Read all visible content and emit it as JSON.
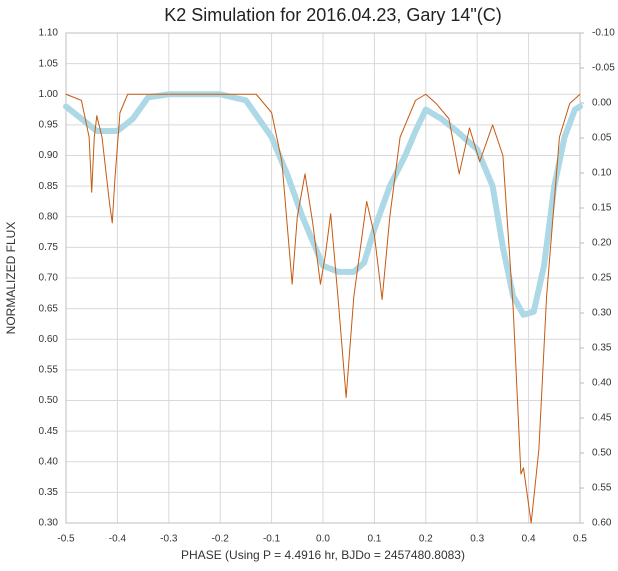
{
  "chart_data": {
    "type": "line",
    "title": "K2 Simulation for 2016.04.23, Gary 14\"(C)",
    "x_label": "PHASE (Using P = 4.4916 hr, BJDo = 2457480.8083)",
    "y_label": "NORMALIZED FLUX",
    "xlim": [
      -0.5,
      0.5
    ],
    "xticks": [
      -0.5,
      -0.4,
      -0.3,
      -0.2,
      -0.1,
      {
        "value": 0,
        "label": "0.0"
      },
      0.1,
      0.2,
      0.3,
      0.4,
      0.5
    ],
    "ylim": [
      0.3,
      1.1
    ],
    "yticks": [
      {
        "value": 0.3,
        "label": "0.30"
      },
      {
        "value": 0.35,
        "label": "0.35"
      },
      {
        "value": 0.4,
        "label": "0.40"
      },
      {
        "value": 0.45,
        "label": "0.45"
      },
      {
        "value": 0.5,
        "label": "0.50"
      },
      {
        "value": 0.55,
        "label": "0.55"
      },
      {
        "value": 0.6,
        "label": "0.60"
      },
      {
        "value": 0.65,
        "label": "0.65"
      },
      {
        "value": 0.7,
        "label": "0.70"
      },
      {
        "value": 0.75,
        "label": "0.75"
      },
      {
        "value": 0.8,
        "label": "0.80"
      },
      {
        "value": 0.85,
        "label": "0.85"
      },
      {
        "value": 0.9,
        "label": "0.90"
      },
      {
        "value": 0.95,
        "label": "0.95"
      },
      {
        "value": 1.0,
        "label": "1.00"
      },
      {
        "value": 1.05,
        "label": "1.05"
      },
      {
        "value": 1.1,
        "label": "1.10"
      }
    ],
    "y2lim": [
      0.6,
      -0.1
    ],
    "y2ticks": [
      {
        "value": -0.1,
        "label": "-0.10"
      },
      {
        "value": -0.05,
        "label": "-0.05"
      },
      {
        "value": 0,
        "label": "0.00"
      },
      {
        "value": 0.05,
        "label": "0.05"
      },
      {
        "value": 0.1,
        "label": "0.10"
      },
      {
        "value": 0.15,
        "label": "0.15"
      },
      {
        "value": 0.2,
        "label": "0.20"
      },
      {
        "value": 0.25,
        "label": "0.25"
      },
      {
        "value": 0.3,
        "label": "0.30"
      },
      {
        "value": 0.35,
        "label": "0.35"
      },
      {
        "value": 0.4,
        "label": "0.40"
      },
      {
        "value": 0.45,
        "label": "0.45"
      },
      {
        "value": 0.5,
        "label": "0.50"
      },
      {
        "value": 0.55,
        "label": "0.55"
      },
      {
        "value": 0.6,
        "label": "0.60"
      }
    ],
    "grid": true,
    "series": [
      {
        "color": "#add8e6",
        "width": 6,
        "x": [
          -0.5,
          -0.47,
          -0.44,
          -0.4,
          -0.37,
          -0.34,
          -0.3,
          -0.2,
          -0.15,
          -0.1,
          -0.07,
          -0.04,
          -0.02,
          0.0,
          0.03,
          0.06,
          0.08,
          0.1,
          0.13,
          0.16,
          0.18,
          0.2,
          0.23,
          0.26,
          0.3,
          0.33,
          0.35,
          0.37,
          0.39,
          0.41,
          0.43,
          0.45,
          0.47,
          0.49,
          0.5
        ],
        "values": [
          0.98,
          0.96,
          0.94,
          0.94,
          0.96,
          0.995,
          1.0,
          1.0,
          0.99,
          0.93,
          0.87,
          0.8,
          0.76,
          0.72,
          0.71,
          0.71,
          0.725,
          0.78,
          0.85,
          0.9,
          0.94,
          0.975,
          0.96,
          0.94,
          0.91,
          0.85,
          0.75,
          0.67,
          0.64,
          0.645,
          0.72,
          0.85,
          0.93,
          0.975,
          0.98
        ]
      },
      {
        "color": "#c55a11",
        "width": 1,
        "x": [
          -0.5,
          -0.47,
          -0.455,
          -0.45,
          -0.445,
          -0.44,
          -0.43,
          -0.415,
          -0.41,
          -0.405,
          -0.395,
          -0.38,
          -0.13,
          -0.1,
          -0.08,
          -0.065,
          -0.06,
          -0.05,
          -0.035,
          -0.02,
          -0.005,
          0.005,
          0.015,
          0.03,
          0.045,
          0.06,
          0.085,
          0.1,
          0.115,
          0.13,
          0.15,
          0.18,
          0.2,
          0.22,
          0.245,
          0.265,
          0.285,
          0.305,
          0.33,
          0.35,
          0.37,
          0.385,
          0.39,
          0.405,
          0.42,
          0.435,
          0.46,
          0.48,
          0.5
        ],
        "values": [
          1.0,
          0.99,
          0.93,
          0.84,
          0.93,
          0.965,
          0.93,
          0.82,
          0.79,
          0.86,
          0.97,
          1.0,
          1.0,
          0.97,
          0.89,
          0.74,
          0.69,
          0.8,
          0.87,
          0.79,
          0.69,
          0.74,
          0.805,
          0.66,
          0.505,
          0.67,
          0.825,
          0.77,
          0.665,
          0.8,
          0.93,
          0.99,
          1.0,
          0.985,
          0.96,
          0.87,
          0.945,
          0.89,
          0.95,
          0.9,
          0.65,
          0.38,
          0.39,
          0.3,
          0.42,
          0.67,
          0.93,
          0.985,
          1.0
        ]
      }
    ]
  }
}
